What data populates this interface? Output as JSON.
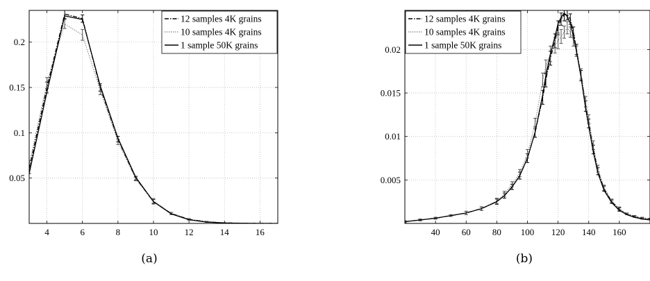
{
  "chart_data": [
    {
      "type": "line",
      "caption": "(a)",
      "xlim": [
        3,
        17
      ],
      "ylim": [
        0,
        0.235
      ],
      "xticks": [
        4,
        6,
        8,
        10,
        12,
        14,
        16
      ],
      "yticks": [
        0.05,
        0.1,
        0.15,
        0.2
      ],
      "ytick_labels": [
        "0.05",
        "0.1",
        "0.15",
        "0.2"
      ],
      "grid": true,
      "legend_position": "top-right",
      "x": [
        3,
        4,
        5,
        6,
        7,
        8,
        9,
        10,
        11,
        12,
        13,
        14,
        15,
        16,
        17
      ],
      "series": [
        {
          "name": "12 samples 4K grains",
          "style": "dashdot",
          "values": [
            0.06,
            0.15,
            0.231,
            0.226,
            0.15,
            0.093,
            0.05,
            0.024,
            0.011,
            0.0045,
            0.0018,
            0.0006,
            0.0002,
            0.0001,
            0.0
          ],
          "errors": [
            0.005,
            0.006,
            0.005,
            0.004,
            0.004,
            0.003,
            0.002,
            0.0025,
            0.0012,
            0.0008,
            0.0005,
            0.0002,
            0.0001,
            0.0,
            0.0
          ]
        },
        {
          "name": "10 samples 4K grains",
          "style": "dotted",
          "values": [
            0.065,
            0.155,
            0.22,
            0.208,
            0.147,
            0.09,
            0.049,
            0.025,
            0.011,
            0.0045,
            0.0018,
            0.0006,
            0.0002,
            0.0001,
            0.0
          ],
          "errors": [
            0.004,
            0.006,
            0.005,
            0.006,
            0.005,
            0.003,
            0.002,
            0.0025,
            0.0012,
            0.0008,
            0.0005,
            0.0002,
            0.0001,
            0.0,
            0.0
          ]
        },
        {
          "name": "1 sample 50K grains",
          "style": "solid",
          "values": [
            0.055,
            0.145,
            0.229,
            0.225,
            0.152,
            0.094,
            0.051,
            0.024,
            0.0105,
            0.004,
            0.0015,
            0.0005,
            0.0002,
            0.0,
            0.0
          ]
        }
      ]
    },
    {
      "type": "line",
      "caption": "(b)",
      "xlim": [
        20,
        180
      ],
      "ylim": [
        0,
        0.0245
      ],
      "xticks": [
        40,
        60,
        80,
        100,
        120,
        140,
        160
      ],
      "yticks": [
        0.005,
        0.01,
        0.015,
        0.02
      ],
      "ytick_labels": [
        "0.005",
        "0.01",
        "0.015",
        "0.02"
      ],
      "grid": true,
      "legend_position": "top-left",
      "x": [
        20,
        30,
        40,
        50,
        60,
        70,
        80,
        85,
        90,
        95,
        100,
        105,
        110,
        112,
        115,
        118,
        120,
        122,
        124,
        126,
        128,
        130,
        132,
        135,
        138,
        140,
        143,
        146,
        150,
        155,
        160,
        165,
        170,
        175,
        180
      ],
      "series": [
        {
          "name": "12 samples 4K grains",
          "style": "dashdot",
          "values": [
            0.0002,
            0.0004,
            0.0006,
            0.0009,
            0.0012,
            0.0017,
            0.0025,
            0.0032,
            0.0042,
            0.0055,
            0.0075,
            0.0105,
            0.0145,
            0.0165,
            0.019,
            0.021,
            0.0225,
            0.0235,
            0.024,
            0.024,
            0.0235,
            0.022,
            0.02,
            0.017,
            0.0135,
            0.0115,
            0.0085,
            0.006,
            0.004,
            0.0025,
            0.0016,
            0.0011,
            0.0008,
            0.0006,
            0.0005
          ],
          "errors": [
            0.0001,
            0.0001,
            0.0001,
            0.0001,
            0.0002,
            0.0002,
            0.0003,
            0.0003,
            0.0003,
            0.0004,
            0.0005,
            0.0006,
            0.0008,
            0.0008,
            0.0008,
            0.0008,
            0.0008,
            0.0007,
            0.0007,
            0.0006,
            0.0006,
            0.0006,
            0.0006,
            0.0006,
            0.0006,
            0.0005,
            0.0005,
            0.0004,
            0.0003,
            0.0002,
            0.0002,
            0.0001,
            0.0001,
            0.0001,
            0.0001
          ]
        },
        {
          "name": "10 samples 4K grains",
          "style": "dotted",
          "values": [
            0.0002,
            0.0004,
            0.0006,
            0.0009,
            0.0012,
            0.0017,
            0.0026,
            0.0034,
            0.0045,
            0.0058,
            0.008,
            0.0115,
            0.0165,
            0.018,
            0.0195,
            0.0205,
            0.021,
            0.0215,
            0.022,
            0.0225,
            0.022,
            0.021,
            0.0198,
            0.0172,
            0.014,
            0.012,
            0.009,
            0.0063,
            0.0041,
            0.0026,
            0.0017,
            0.0011,
            0.0008,
            0.0006,
            0.0005
          ],
          "errors": [
            0.0001,
            0.0001,
            0.0001,
            0.0001,
            0.0002,
            0.0002,
            0.0003,
            0.0003,
            0.0003,
            0.0004,
            0.0005,
            0.0006,
            0.0008,
            0.0008,
            0.0009,
            0.0009,
            0.0009,
            0.0008,
            0.0007,
            0.0007,
            0.0006,
            0.0006,
            0.0006,
            0.0006,
            0.0006,
            0.0005,
            0.0005,
            0.0004,
            0.0003,
            0.0002,
            0.0002,
            0.0001,
            0.0001,
            0.0001,
            0.0001
          ]
        },
        {
          "name": "1 sample 50K grains",
          "style": "solid",
          "values": [
            0.0002,
            0.0004,
            0.0006,
            0.0009,
            0.0012,
            0.0017,
            0.0025,
            0.0032,
            0.0042,
            0.0055,
            0.0075,
            0.0105,
            0.0148,
            0.017,
            0.0195,
            0.0215,
            0.023,
            0.0237,
            0.0242,
            0.0238,
            0.023,
            0.0215,
            0.0198,
            0.0168,
            0.0132,
            0.0112,
            0.0082,
            0.0058,
            0.0038,
            0.0024,
            0.0015,
            0.001,
            0.0007,
            0.0005,
            0.0004
          ]
        }
      ]
    }
  ]
}
